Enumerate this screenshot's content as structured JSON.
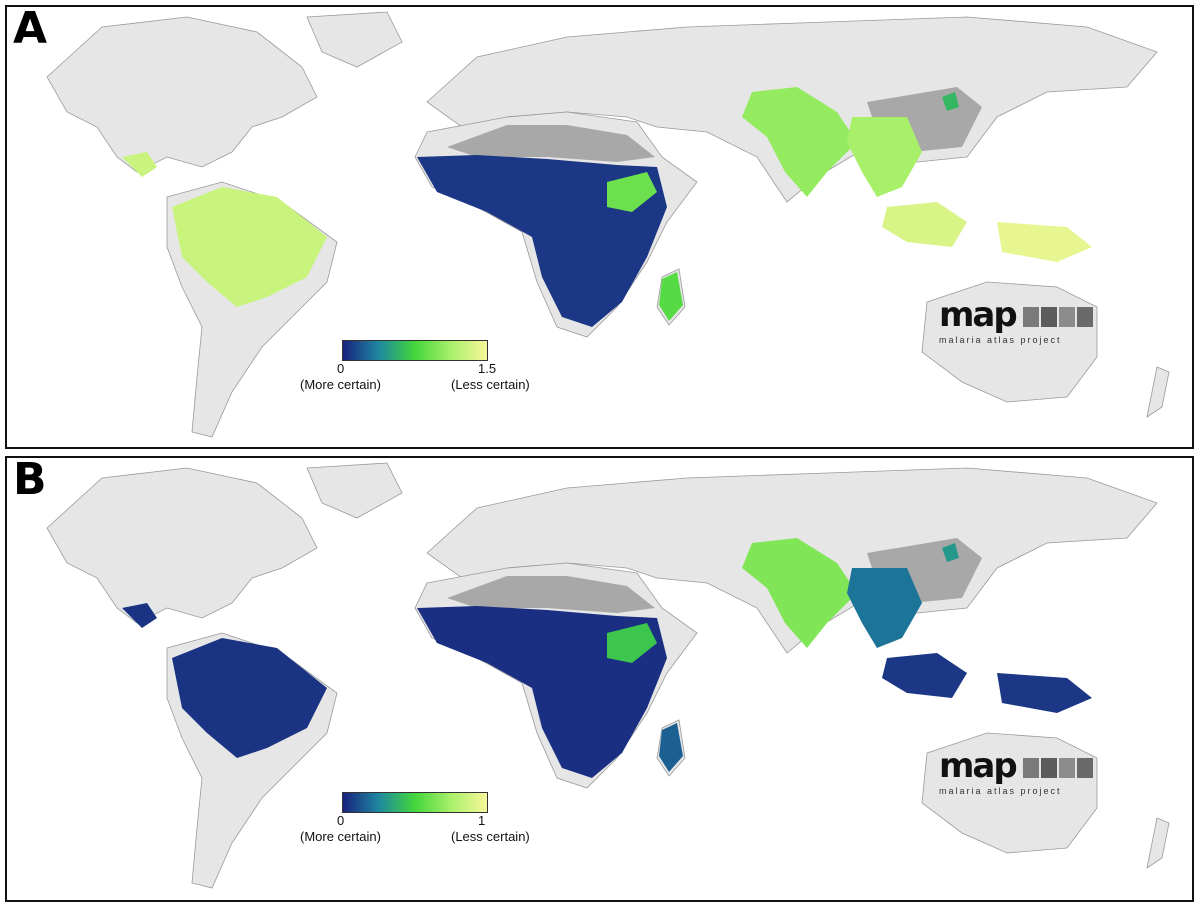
{
  "panels": [
    {
      "letter": "A",
      "legend": {
        "min": "0",
        "max": "1.5",
        "min_caption": "(More certain)",
        "max_caption": "(Less certain)"
      },
      "logo": {
        "word": "map",
        "subtitle": "malaria atlas project"
      },
      "colorscale": [
        "#1a237e",
        "#1e88a0",
        "#43d63a",
        "#a9f06a",
        "#f7f79a"
      ],
      "zone_values": {
        "americas": 0.85,
        "africa": 0.05,
        "horn": 0.6,
        "madagascar": 0.55,
        "india": 0.7,
        "se_asia": 0.75,
        "indonesia": 0.9,
        "china": 0.4,
        "papua": 0.95
      }
    },
    {
      "letter": "B",
      "legend": {
        "min": "0",
        "max": "1",
        "min_caption": "(More certain)",
        "max_caption": "(Less certain)"
      },
      "logo": {
        "word": "map",
        "subtitle": "malaria atlas project"
      },
      "colorscale": [
        "#1a237e",
        "#1e88a0",
        "#43d63a",
        "#a9f06a",
        "#f7f79a"
      ],
      "zone_values": {
        "americas": 0.04,
        "africa": 0.03,
        "horn": 0.45,
        "madagascar": 0.15,
        "india": 0.65,
        "se_asia": 0.2,
        "indonesia": 0.05,
        "china": 0.3,
        "papua": 0.05
      }
    }
  ]
}
